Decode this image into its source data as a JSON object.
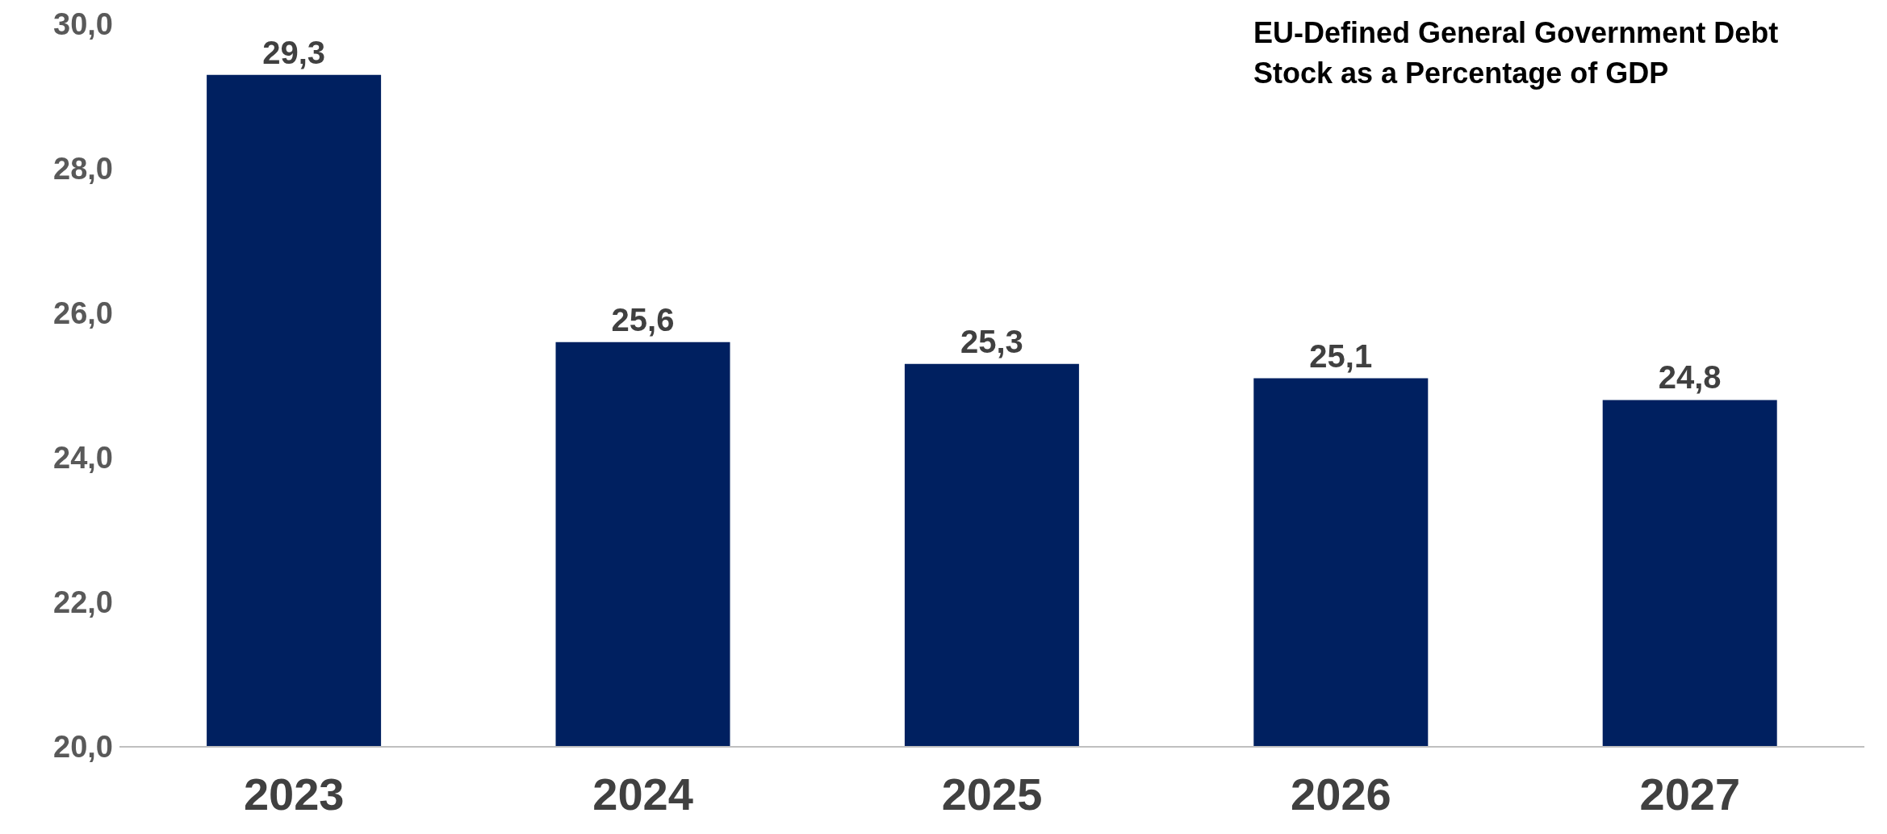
{
  "chart_data": {
    "type": "bar",
    "title": "EU-Defined General Government Debt Stock as a Percentage of GDP",
    "categories": [
      "2023",
      "2024",
      "2025",
      "2026",
      "2027"
    ],
    "values": [
      29.3,
      25.6,
      25.3,
      25.1,
      24.8
    ],
    "value_labels": [
      "29,3",
      "25,6",
      "25,3",
      "25,1",
      "24,8"
    ],
    "color": "#002060",
    "ylim": [
      20,
      30
    ],
    "yticks": [
      {
        "value": 20,
        "label": "20,0"
      },
      {
        "value": 22,
        "label": "22,0"
      },
      {
        "value": 24,
        "label": "24,0"
      },
      {
        "value": 26,
        "label": "26,0"
      },
      {
        "value": 28,
        "label": "28,0"
      },
      {
        "value": 30,
        "label": "30,0"
      }
    ],
    "grid": false,
    "legend": false
  }
}
